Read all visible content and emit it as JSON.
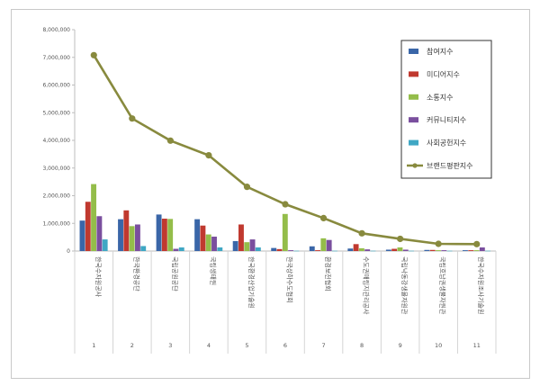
{
  "chart_data": {
    "type": "bar",
    "title": "",
    "xlabel": "",
    "ylabel": "",
    "ylim": [
      0,
      8000000
    ],
    "yticks": [
      "0",
      "1,000,000",
      "2,000,000",
      "3,000,000",
      "4,000,000",
      "5,000,000",
      "6,000,000",
      "7,000,000",
      "8,000,000"
    ],
    "grid": false,
    "legend_position": "top-right",
    "categories": [
      "1",
      "2",
      "3",
      "4",
      "5",
      "6",
      "7",
      "8",
      "9",
      "10",
      "11"
    ],
    "category_labels": [
      "한국수자원공사",
      "한국환경공단",
      "국립공원공단",
      "국립생태원",
      "한국환경산업기술원",
      "한국상하수도협회",
      "환경보전협회",
      "수도권매립지관리공사",
      "국립낙동강생물자원관",
      "국립호남권생물자원관",
      "한국수자원조사기술원"
    ],
    "series": [
      {
        "name": "참여지수",
        "color": "#3a66a8",
        "type": "bar",
        "values": [
          1100000,
          1150000,
          1320000,
          1150000,
          360000,
          110000,
          170000,
          90000,
          50000,
          40000,
          30000
        ]
      },
      {
        "name": "미디어지수",
        "color": "#c0392f",
        "type": "bar",
        "values": [
          1780000,
          1470000,
          1170000,
          920000,
          960000,
          70000,
          30000,
          250000,
          80000,
          40000,
          30000
        ]
      },
      {
        "name": "소통지수",
        "color": "#94bd4a",
        "type": "bar",
        "values": [
          2420000,
          900000,
          1160000,
          600000,
          320000,
          1340000,
          460000,
          100000,
          130000,
          30000,
          30000
        ]
      },
      {
        "name": "커뮤니티지수",
        "color": "#7a4f9e",
        "type": "bar",
        "values": [
          1260000,
          960000,
          80000,
          520000,
          420000,
          30000,
          400000,
          60000,
          50000,
          30000,
          130000
        ]
      },
      {
        "name": "사회공헌지수",
        "color": "#3fa7c4",
        "type": "bar",
        "values": [
          420000,
          180000,
          130000,
          130000,
          130000,
          10000,
          10000,
          10000,
          10000,
          10000,
          10000
        ]
      },
      {
        "name": "브랜드평판지수",
        "color": "#888a3e",
        "type": "line",
        "values": [
          7080000,
          4790000,
          3990000,
          3460000,
          2320000,
          1690000,
          1190000,
          640000,
          440000,
          260000,
          250000
        ]
      }
    ]
  }
}
